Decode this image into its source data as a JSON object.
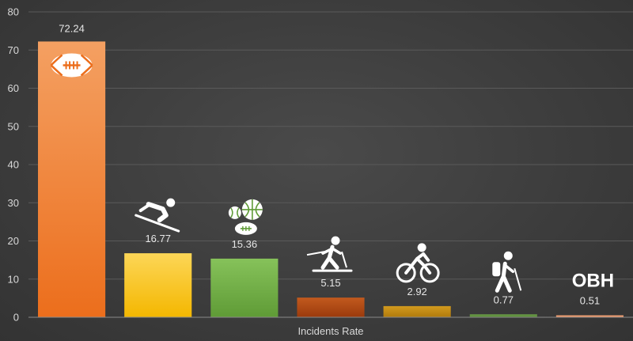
{
  "chart_data": {
    "type": "bar",
    "categories": [
      "football-icon",
      "skiing-icon",
      "ball-sports-icon",
      "cross-country-ski-icon",
      "cycling-icon",
      "hiking-icon",
      "OBH"
    ],
    "values": [
      72.24,
      16.77,
      15.36,
      5.15,
      2.92,
      0.77,
      0.51
    ],
    "value_labels": [
      "72.24",
      "16.77",
      "15.36",
      "5.15",
      "2.92",
      "0.77",
      "0.51"
    ],
    "colors": [
      [
        "#f4a062",
        "#ec6e1c"
      ],
      [
        "#fcd657",
        "#f4b700"
      ],
      [
        "#86c25a",
        "#5f9b36"
      ],
      [
        "#c25a1e",
        "#9a3a0c"
      ],
      [
        "#d29a1e",
        "#b07a0c"
      ],
      [
        "#6fa04a",
        "#4f8030"
      ],
      [
        "#f4a87a",
        "#ec8c5c"
      ]
    ],
    "title": "",
    "xlabel": "Incidents Rate",
    "ylabel": "",
    "ylim": [
      0,
      80
    ],
    "yticks": [
      0,
      10,
      20,
      30,
      40,
      50,
      60,
      70,
      80
    ],
    "grid": true,
    "obh_label": "OBH"
  }
}
